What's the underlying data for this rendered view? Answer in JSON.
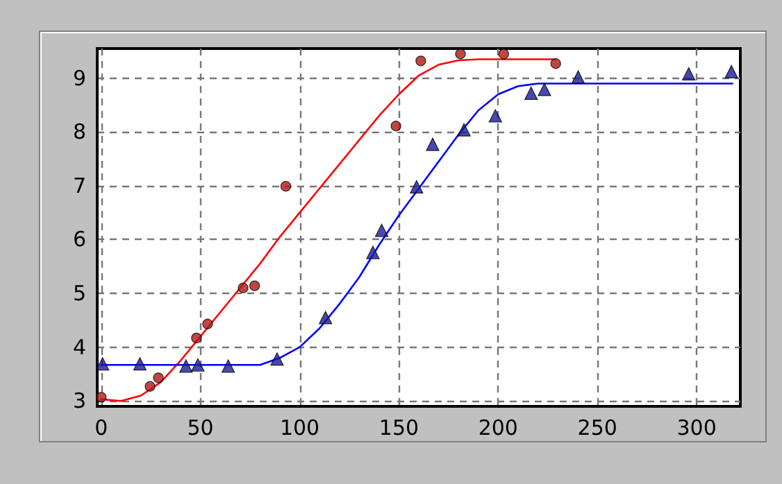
{
  "chart_data": {
    "type": "scatter",
    "xlim": [
      -2,
      322
    ],
    "xticks": [
      0,
      50,
      100,
      150,
      200,
      250,
      300
    ],
    "ylim": [
      2.9,
      9.55
    ],
    "yticks": [
      3,
      4,
      5,
      6,
      7,
      8,
      9
    ],
    "grid": true,
    "series": [
      {
        "marker": "circle",
        "color": "#b01818",
        "x": [
          0,
          24.6,
          28.8,
          48,
          53.6,
          71.5,
          77.3,
          93,
          148.5,
          161,
          181,
          202.8,
          229
        ],
        "values": [
          3.07,
          3.27,
          3.43,
          4.17,
          4.43,
          5.1,
          5.14,
          6.99,
          8.11,
          9.32,
          9.45,
          9.45,
          9.27
        ]
      },
      {
        "marker": "triangle",
        "color": "#1a1a9a",
        "x": [
          0.7,
          19.5,
          42.7,
          48.7,
          64,
          88.6,
          113,
          136.9,
          141.3,
          158.9,
          167,
          182.8,
          198.6,
          216.6,
          223.3,
          240.3,
          296,
          317.5
        ],
        "values": [
          3.69,
          3.69,
          3.65,
          3.67,
          3.65,
          3.78,
          4.55,
          5.76,
          6.17,
          6.98,
          7.77,
          8.04,
          8.3,
          8.72,
          8.79,
          9.02,
          9.08,
          9.12
        ]
      },
      {
        "type": "line",
        "marker": "none",
        "line_style": "solid",
        "color": "#ff0000",
        "x": [
          0,
          10,
          20,
          30,
          40,
          50,
          60,
          70,
          80,
          90,
          100,
          110,
          120,
          130,
          140,
          150,
          160,
          170,
          180,
          190,
          200,
          229
        ],
        "values": [
          3.03,
          3.0,
          3.1,
          3.35,
          3.75,
          4.2,
          4.65,
          5.1,
          5.55,
          6.05,
          6.5,
          6.95,
          7.4,
          7.85,
          8.3,
          8.7,
          9.05,
          9.25,
          9.33,
          9.35,
          9.35,
          9.35
        ]
      },
      {
        "type": "line",
        "marker": "none",
        "line_style": "solid",
        "color": "#0000ff",
        "x": [
          0,
          80,
          90,
          100,
          110,
          120,
          130,
          140,
          150,
          160,
          170,
          180,
          190,
          200,
          210,
          220,
          318
        ],
        "values": [
          3.67,
          3.67,
          3.8,
          4.0,
          4.35,
          4.8,
          5.3,
          5.9,
          6.45,
          6.95,
          7.45,
          7.95,
          8.4,
          8.7,
          8.85,
          8.9,
          8.9
        ]
      }
    ]
  }
}
